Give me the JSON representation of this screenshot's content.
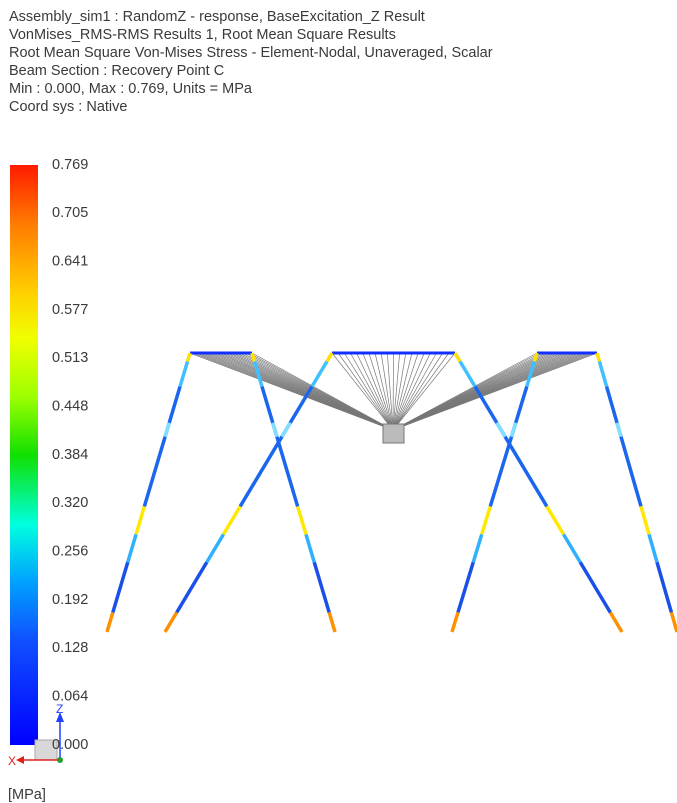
{
  "header": {
    "lines": [
      "Assembly_sim1 : RandomZ - response, BaseExcitation_Z Result",
      "VonMises_RMS-RMS Results 1, Root Mean Square Results",
      "Root Mean Square Von-Mises Stress - Element-Nodal, Unaveraged, Scalar",
      "Beam Section : Recovery Point C",
      "Min : 0.000, Max : 0.769, Units = MPa",
      "Coord sys : Native"
    ]
  },
  "legend": {
    "labels": [
      "0.769",
      "0.705",
      "0.641",
      "0.577",
      "0.513",
      "0.448",
      "0.384",
      "0.320",
      "0.256",
      "0.192",
      "0.128",
      "0.064",
      "0.000"
    ],
    "unit": "[MPa]"
  },
  "triad": {
    "x": "X",
    "z": "Z"
  }
}
